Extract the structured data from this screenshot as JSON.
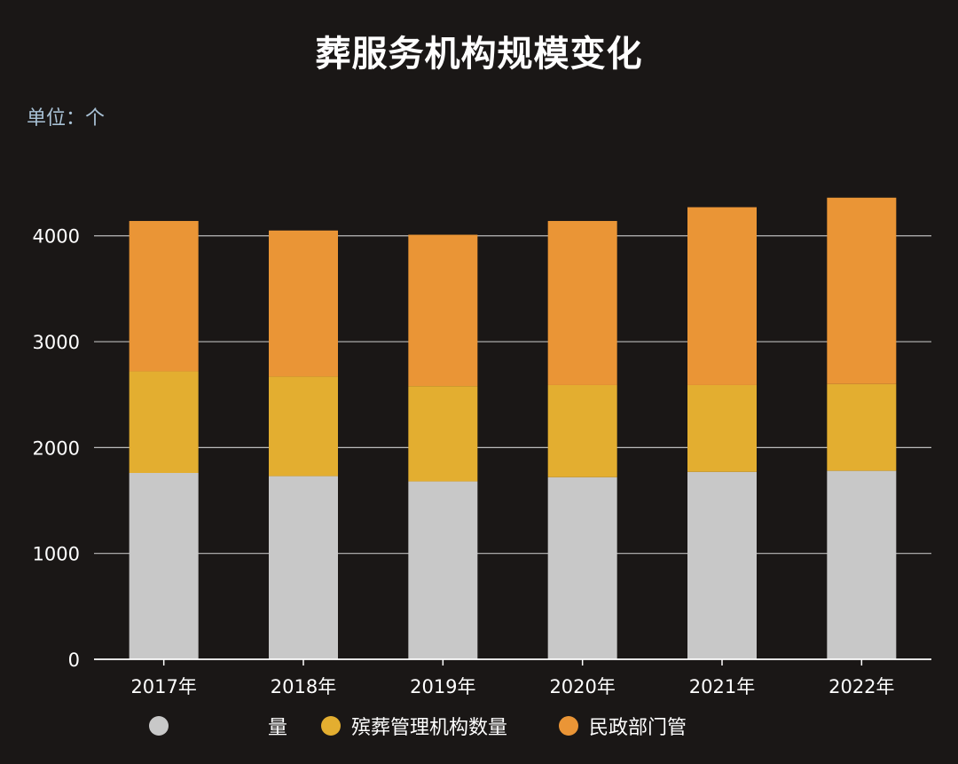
{
  "header": {
    "title": "葬服务机构规模变化",
    "unit": "单位：个"
  },
  "colors": {
    "background": "#1a1716",
    "grid": "#d8d8d8",
    "series": [
      "#c8c8c8",
      "#e3ae30",
      "#ea9536"
    ]
  },
  "legend": {
    "items": [
      {
        "label": "量",
        "color": "#c8c8c8"
      },
      {
        "label": "殡葬管理机构数量",
        "color": "#e3ae30"
      },
      {
        "label": "民政部门管",
        "color": "#ea9536"
      }
    ]
  },
  "chart_data": {
    "type": "bar",
    "stacked": true,
    "title": "葬服务机构规模变化",
    "ylabel": "单位：个",
    "categories": [
      "2017年",
      "2018年",
      "2019年",
      "2020年",
      "2021年",
      "2022年"
    ],
    "series": [
      {
        "name": "量",
        "values": [
          1760,
          1730,
          1680,
          1720,
          1770,
          1780
        ],
        "color": "#c8c8c8"
      },
      {
        "name": "殡葬管理机构数量",
        "values": [
          960,
          940,
          900,
          870,
          820,
          820
        ],
        "color": "#e3ae30"
      },
      {
        "name": "民政部门管",
        "values": [
          1420,
          1380,
          1430,
          1550,
          1680,
          1760
        ],
        "color": "#ea9536"
      }
    ],
    "yticks": [
      0,
      1000,
      2000,
      3000,
      4000
    ],
    "ylim": [
      0,
      4400
    ],
    "grid": true,
    "legend_position": "bottom"
  }
}
